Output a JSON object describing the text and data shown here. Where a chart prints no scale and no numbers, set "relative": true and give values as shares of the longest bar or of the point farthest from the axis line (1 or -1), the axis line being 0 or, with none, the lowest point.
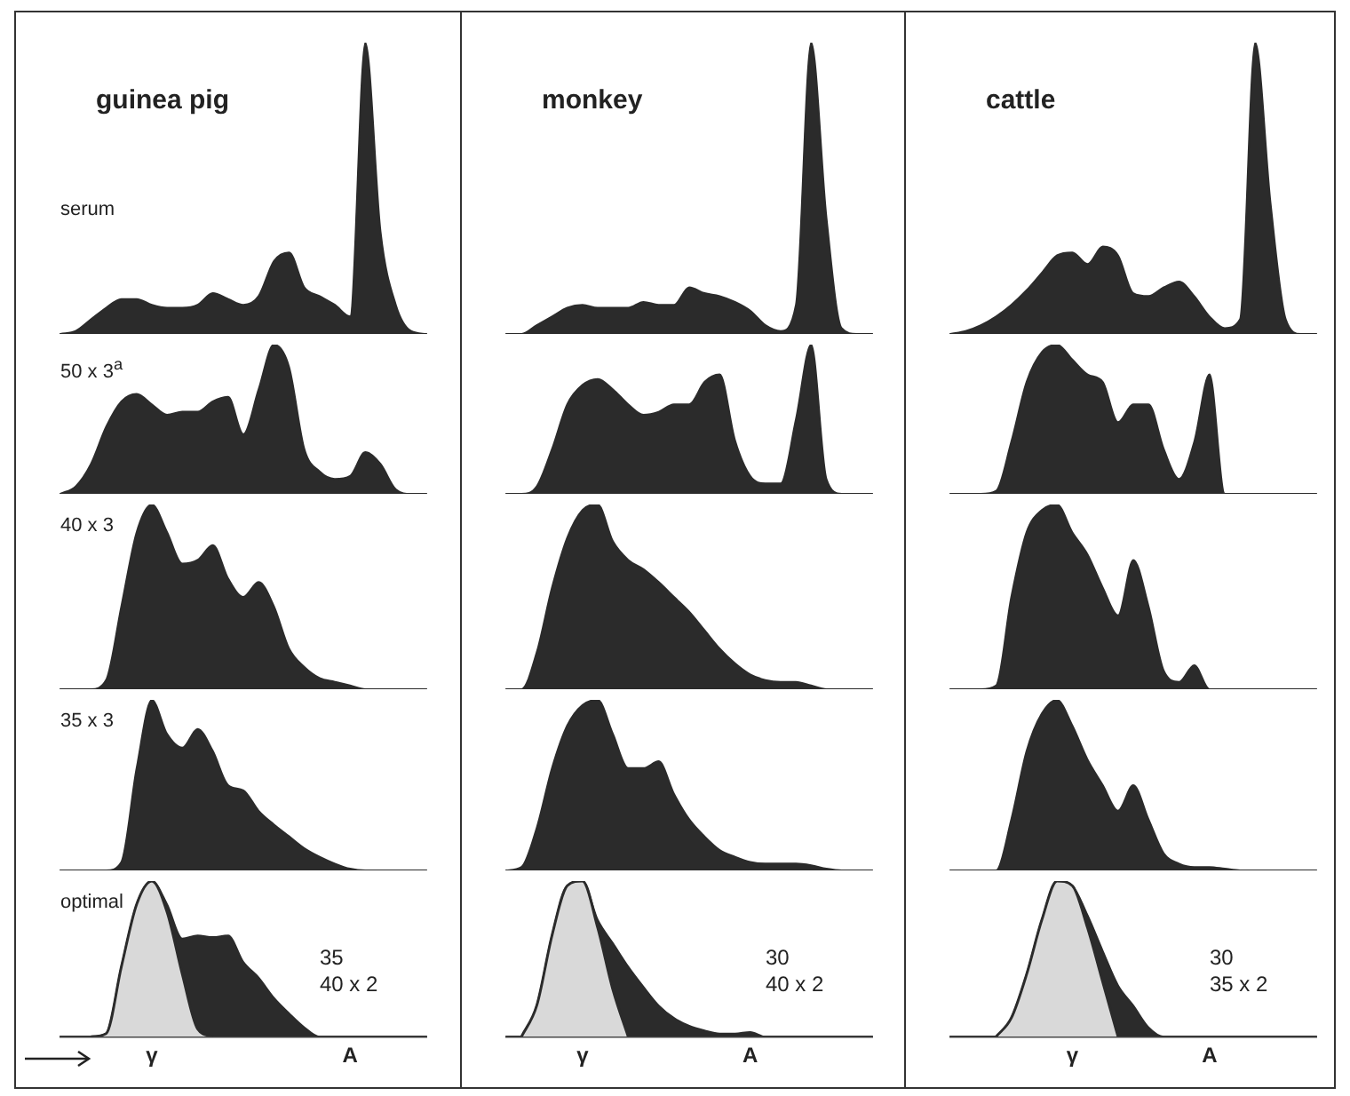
{
  "chart_data": [
    {
      "type": "area",
      "relative": true,
      "title": "guinea pig",
      "subtitle": "serum",
      "categories": [
        null,
        null,
        null,
        null,
        null,
        null,
        null,
        null,
        null,
        null,
        null,
        null,
        null,
        null,
        null,
        null,
        null,
        null,
        null,
        null,
        null,
        null,
        null,
        null,
        null
      ],
      "color": "#2b2b2b",
      "values": [
        0,
        0.01,
        0.05,
        0.09,
        0.12,
        0.12,
        0.1,
        0.09,
        0.09,
        0.1,
        0.14,
        0.12,
        0.1,
        0.13,
        0.25,
        0.28,
        0.16,
        0.13,
        0.1,
        0.06,
        1,
        0.35,
        0.1,
        0.01,
        0
      ]
    },
    {
      "type": "area",
      "relative": true,
      "title": "monkey",
      "categories": [
        null,
        null,
        null,
        null,
        null,
        null,
        null,
        null,
        null,
        null,
        null,
        null,
        null,
        null,
        null,
        null,
        null,
        null,
        null,
        null,
        null,
        null,
        null,
        null,
        null
      ],
      "color": "#2b2b2b",
      "values": [
        0,
        0,
        0.03,
        0.06,
        0.09,
        0.1,
        0.09,
        0.09,
        0.09,
        0.11,
        0.1,
        0.1,
        0.16,
        0.14,
        0.13,
        0.11,
        0.08,
        0.03,
        0.01,
        0.1,
        1,
        0.4,
        0.02,
        0,
        0
      ]
    },
    {
      "type": "area",
      "relative": true,
      "title": "cattle",
      "categories": [
        null,
        null,
        null,
        null,
        null,
        null,
        null,
        null,
        null,
        null,
        null,
        null,
        null,
        null,
        null,
        null,
        null,
        null,
        null,
        null,
        null,
        null,
        null,
        null,
        null
      ],
      "color": "#2b2b2b",
      "values": [
        0,
        0.01,
        0.03,
        0.06,
        0.1,
        0.15,
        0.21,
        0.27,
        0.28,
        0.24,
        0.3,
        0.27,
        0.14,
        0.13,
        0.16,
        0.18,
        0.13,
        0.06,
        0.02,
        0.05,
        1,
        0.45,
        0.05,
        0,
        0
      ]
    },
    {
      "type": "area",
      "relative": true,
      "subtitle": "50 x 3$^{a}$",
      "categories": [
        null,
        null,
        null,
        null,
        null,
        null,
        null,
        null,
        null,
        null,
        null,
        null,
        null,
        null,
        null,
        null,
        null,
        null,
        null,
        null,
        null,
        null,
        null,
        null,
        null
      ],
      "color": "#2b2b2b",
      "values": [
        0,
        0.05,
        0.2,
        0.45,
        0.62,
        0.67,
        0.6,
        0.53,
        0.55,
        0.55,
        0.62,
        0.65,
        0.4,
        0.7,
        1,
        0.85,
        0.3,
        0.15,
        0.1,
        0.12,
        0.28,
        0.2,
        0.03,
        0,
        0
      ]
    },
    {
      "type": "area",
      "relative": true,
      "categories": [
        null,
        null,
        null,
        null,
        null,
        null,
        null,
        null,
        null,
        null,
        null,
        null,
        null,
        null,
        null,
        null,
        null,
        null,
        null,
        null,
        null,
        null,
        null,
        null,
        null
      ],
      "color": "#2b2b2b",
      "values": [
        0,
        0,
        0.05,
        0.3,
        0.6,
        0.73,
        0.77,
        0.7,
        0.6,
        0.53,
        0.55,
        0.6,
        0.6,
        0.75,
        0.8,
        0.36,
        0.12,
        0.07,
        0.07,
        0.5,
        1,
        0.1,
        0,
        0,
        0
      ]
    },
    {
      "type": "area",
      "relative": true,
      "categories": [
        null,
        null,
        null,
        null,
        null,
        null,
        null,
        null,
        null,
        null,
        null,
        null,
        null,
        null,
        null,
        null,
        null,
        null,
        null,
        null,
        null,
        null,
        null,
        null,
        null
      ],
      "color": "#2b2b2b",
      "values": [
        0,
        0,
        0,
        0.02,
        0.35,
        0.75,
        0.95,
        1,
        0.9,
        0.8,
        0.75,
        0.48,
        0.6,
        0.6,
        0.3,
        0.1,
        0.35,
        0.8,
        0,
        0,
        0,
        0,
        0,
        0,
        0
      ]
    },
    {
      "type": "area",
      "relative": true,
      "subtitle": "40 x 3",
      "categories": [
        null,
        null,
        null,
        null,
        null,
        null,
        null,
        null,
        null,
        null,
        null,
        null,
        null,
        null,
        null,
        null,
        null,
        null,
        null,
        null,
        null,
        null,
        null,
        null,
        null
      ],
      "color": "#2b2b2b",
      "values": [
        0,
        0,
        0,
        0.05,
        0.45,
        0.85,
        1,
        0.85,
        0.68,
        0.7,
        0.78,
        0.6,
        0.5,
        0.58,
        0.45,
        0.22,
        0.12,
        0.06,
        0.04,
        0.02,
        0,
        0,
        0,
        0,
        0
      ]
    },
    {
      "type": "area",
      "relative": true,
      "categories": [
        null,
        null,
        null,
        null,
        null,
        null,
        null,
        null,
        null,
        null,
        null,
        null,
        null,
        null,
        null,
        null,
        null,
        null,
        null,
        null,
        null,
        null,
        null,
        null,
        null
      ],
      "color": "#2b2b2b",
      "values": [
        0,
        0,
        0.2,
        0.55,
        0.82,
        0.97,
        1,
        0.8,
        0.7,
        0.65,
        0.58,
        0.5,
        0.42,
        0.32,
        0.22,
        0.14,
        0.08,
        0.05,
        0.04,
        0.04,
        0.02,
        0,
        0,
        0,
        0
      ]
    },
    {
      "type": "area",
      "relative": true,
      "categories": [
        null,
        null,
        null,
        null,
        null,
        null,
        null,
        null,
        null,
        null,
        null,
        null,
        null,
        null,
        null,
        null,
        null,
        null,
        null,
        null,
        null,
        null,
        null,
        null,
        null
      ],
      "color": "#2b2b2b",
      "values": [
        0,
        0,
        0,
        0.02,
        0.5,
        0.85,
        0.97,
        1,
        0.85,
        0.73,
        0.55,
        0.4,
        0.7,
        0.45,
        0.1,
        0.04,
        0.13,
        0,
        0,
        0,
        0,
        0,
        0,
        0,
        0
      ]
    },
    {
      "type": "area",
      "relative": true,
      "subtitle": "35 x 3",
      "categories": [
        null,
        null,
        null,
        null,
        null,
        null,
        null,
        null,
        null,
        null,
        null,
        null,
        null,
        null,
        null,
        null,
        null,
        null,
        null,
        null,
        null,
        null,
        null,
        null,
        null
      ],
      "color": "#2b2b2b",
      "values": [
        0,
        0,
        0,
        0,
        0.05,
        0.6,
        1,
        0.8,
        0.72,
        0.83,
        0.7,
        0.5,
        0.47,
        0.35,
        0.27,
        0.2,
        0.13,
        0.08,
        0.04,
        0.01,
        0,
        0,
        0,
        0,
        0
      ]
    },
    {
      "type": "area",
      "relative": true,
      "categories": [
        null,
        null,
        null,
        null,
        null,
        null,
        null,
        null,
        null,
        null,
        null,
        null,
        null,
        null,
        null,
        null,
        null,
        null,
        null,
        null,
        null,
        null,
        null,
        null,
        null
      ],
      "color": "#2b2b2b",
      "values": [
        0,
        0.02,
        0.25,
        0.6,
        0.85,
        0.97,
        1,
        0.8,
        0.6,
        0.6,
        0.64,
        0.45,
        0.3,
        0.2,
        0.12,
        0.08,
        0.05,
        0.04,
        0.04,
        0.04,
        0.03,
        0.01,
        0,
        0,
        0
      ]
    },
    {
      "type": "area",
      "relative": true,
      "categories": [
        null,
        null,
        null,
        null,
        null,
        null,
        null,
        null,
        null,
        null,
        null,
        null,
        null,
        null,
        null,
        null,
        null,
        null,
        null,
        null,
        null,
        null,
        null,
        null,
        null
      ],
      "color": "#2b2b2b",
      "values": [
        0,
        0,
        0,
        0,
        0.3,
        0.7,
        0.92,
        1,
        0.85,
        0.65,
        0.5,
        0.35,
        0.5,
        0.3,
        0.1,
        0.04,
        0.02,
        0.02,
        0.01,
        0,
        0,
        0,
        0,
        0,
        0
      ]
    },
    {
      "type": "area",
      "relative": true,
      "subtitle": "optimal",
      "categories": [
        null,
        null,
        null,
        null,
        null,
        null,
        "γ",
        null,
        null,
        null,
        null,
        null,
        null,
        null,
        null,
        null,
        null,
        null,
        null,
        "A",
        null,
        null,
        null,
        null,
        null
      ],
      "annotations": [
        "35",
        "40 x 2"
      ],
      "series": [
        {
          "color": "#2b2b2b",
          "values": [
            0,
            0,
            0,
            0.02,
            0.45,
            0.85,
            1,
            0.85,
            0.63,
            0.65,
            0.64,
            0.65,
            0.48,
            0.38,
            0.25,
            0.15,
            0.06,
            0,
            0,
            0,
            0,
            0,
            0,
            0,
            0
          ]
        },
        {
          "color": "#d9d9d9",
          "values": [
            null,
            null,
            0,
            0.02,
            0.45,
            0.85,
            1,
            0.8,
            0.4,
            0.05,
            0,
            null,
            null,
            null,
            null,
            null,
            null,
            null,
            null,
            null,
            null,
            null,
            null,
            null,
            null
          ]
        }
      ]
    },
    {
      "type": "area",
      "relative": true,
      "categories": [
        null,
        null,
        null,
        null,
        null,
        "γ",
        null,
        null,
        null,
        null,
        null,
        null,
        null,
        null,
        null,
        null,
        "A",
        null,
        null,
        null,
        null,
        null,
        null,
        null,
        null
      ],
      "annotations": [
        "30",
        "40 x 2"
      ],
      "series": [
        {
          "color": "#2b2b2b",
          "values": [
            0,
            0,
            0.2,
            0.65,
            0.97,
            1,
            0.75,
            0.6,
            0.45,
            0.32,
            0.2,
            0.12,
            0.07,
            0.04,
            0.02,
            0.02,
            0.03,
            0,
            0,
            0,
            0,
            0,
            0,
            0,
            0
          ]
        },
        {
          "color": "#d9d9d9",
          "values": [
            null,
            0,
            0.2,
            0.65,
            0.97,
            1,
            0.7,
            0.3,
            0,
            null,
            null,
            null,
            null,
            null,
            null,
            null,
            null,
            null,
            null,
            null,
            null,
            null,
            null,
            null,
            null
          ]
        }
      ]
    },
    {
      "type": "area",
      "relative": true,
      "categories": [
        null,
        null,
        null,
        null,
        null,
        null,
        null,
        null,
        "γ",
        null,
        null,
        null,
        null,
        null,
        null,
        null,
        null,
        "A",
        null,
        null,
        null,
        null,
        null,
        null,
        null
      ],
      "annotations": [
        "30",
        "35 x 2"
      ],
      "series": [
        {
          "color": "#2b2b2b",
          "values": [
            0,
            0,
            0,
            0,
            0.12,
            0.4,
            0.75,
            1,
            0.97,
            0.78,
            0.55,
            0.33,
            0.2,
            0.06,
            0,
            0,
            0,
            0,
            0,
            0,
            0,
            0,
            0,
            0,
            0
          ]
        },
        {
          "color": "#d9d9d9",
          "values": [
            null,
            null,
            null,
            0,
            0.12,
            0.4,
            0.75,
            1,
            0.97,
            0.7,
            0.35,
            0,
            null,
            null,
            null,
            null,
            null,
            null,
            null,
            null,
            null,
            null,
            null,
            null,
            null
          ]
        }
      ]
    }
  ]
}
